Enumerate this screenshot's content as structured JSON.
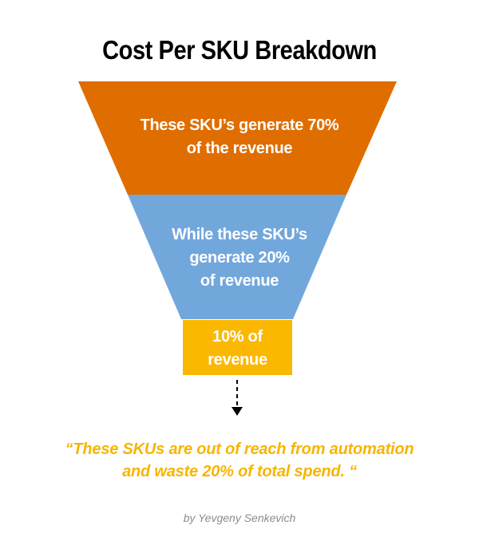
{
  "title": "Cost Per SKU Breakdown",
  "stages": [
    {
      "line1": "These SKU’s generate 70%",
      "line2": "of the revenue",
      "color": "#df6d00"
    },
    {
      "line1": "While these SKU’s",
      "line2": "generate 20%",
      "line3": "of revenue",
      "color": "#72a7dc"
    },
    {
      "line1": "10% of",
      "line2": "revenue",
      "color": "#fbb800"
    }
  ],
  "quote": {
    "line1": "“These SKUs are out of reach from automation",
    "line2": "and waste 20% of total spend. “"
  },
  "byline": "by Yevgeny Senkevich"
}
